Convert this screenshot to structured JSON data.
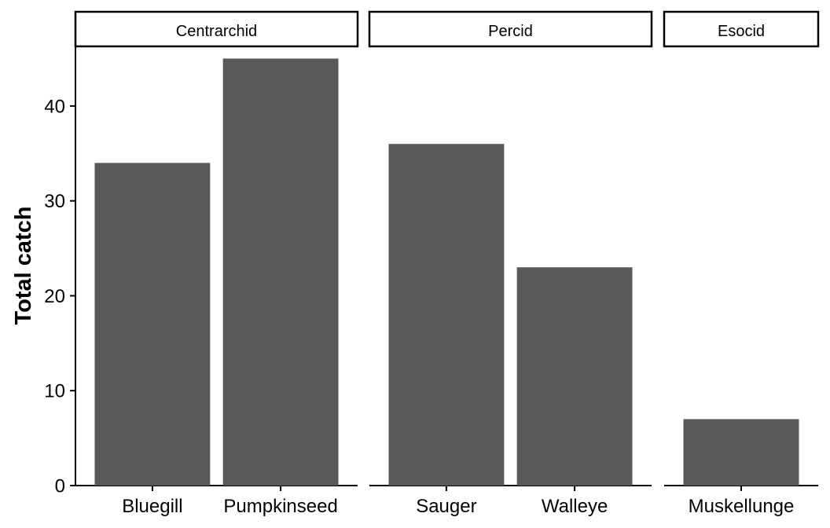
{
  "chart_data": {
    "type": "bar",
    "ylabel": "Total catch",
    "xlabel": "",
    "ylim": [
      0,
      46.2
    ],
    "yticks": [
      0,
      10,
      20,
      30,
      40
    ],
    "grid": false,
    "bar_color": "#595959",
    "panels": [
      {
        "name": "Centrarchid",
        "categories": [
          "Bluegill",
          "Pumpkinseed"
        ],
        "values": [
          34,
          45
        ]
      },
      {
        "name": "Percid",
        "categories": [
          "Sauger",
          "Walleye"
        ],
        "values": [
          36,
          23
        ]
      },
      {
        "name": "Esocid",
        "categories": [
          "Muskellunge"
        ],
        "values": [
          7
        ]
      }
    ]
  }
}
